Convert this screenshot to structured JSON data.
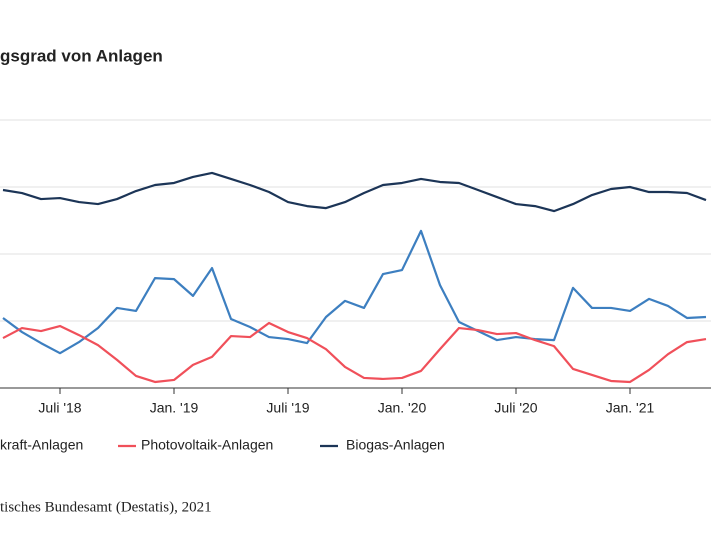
{
  "chart_data": {
    "type": "line",
    "title": "gsgrad von Anlagen",
    "categories": [
      null,
      null,
      null,
      "Juli '18",
      null,
      null,
      null,
      null,
      null,
      "Jan. '19",
      null,
      null,
      null,
      null,
      null,
      "Juli '19",
      null,
      null,
      null,
      null,
      null,
      "Jan. '20",
      null,
      null,
      null,
      null,
      null,
      "Juli '20",
      null,
      null,
      null,
      null,
      null,
      "Jan. '21",
      null,
      null,
      null,
      null
    ],
    "series": [
      {
        "name": "kraft-Anlagen",
        "color": "#3d7fc0",
        "values": [
          20.9,
          16.7,
          13.4,
          10.4,
          13.7,
          17.9,
          23.9,
          23.0,
          32.8,
          32.5,
          27.5,
          35.8,
          20.6,
          18.2,
          15.2,
          14.6,
          13.4,
          21.2,
          26.0,
          23.9,
          34.0,
          35.2,
          46.9,
          30.7,
          19.7,
          17.0,
          14.3,
          15.2,
          14.6,
          14.3,
          29.9,
          23.9,
          23.9,
          23.0,
          26.6,
          24.5,
          20.9,
          21.2
        ]
      },
      {
        "name": "Photovoltaik-Anlagen",
        "color": "#f0505a",
        "values": [
          14.9,
          17.9,
          17.0,
          18.5,
          15.8,
          12.8,
          8.4,
          3.6,
          1.8,
          2.4,
          6.9,
          9.3,
          15.5,
          15.2,
          19.4,
          16.7,
          14.9,
          11.6,
          6.3,
          3.0,
          2.7,
          3.0,
          5.1,
          11.6,
          17.9,
          17.3,
          16.1,
          16.4,
          14.3,
          12.5,
          5.7,
          3.9,
          2.1,
          1.8,
          5.4,
          10.1,
          13.7,
          14.6
        ]
      },
      {
        "name": "Biogas-Anlagen",
        "color": "#1c3557",
        "values": [
          59.1,
          58.2,
          56.4,
          56.7,
          55.5,
          54.9,
          56.4,
          58.8,
          60.6,
          61.2,
          63.0,
          64.2,
          62.4,
          60.6,
          58.5,
          55.5,
          54.3,
          53.7,
          55.5,
          58.2,
          60.6,
          61.2,
          62.4,
          61.5,
          61.2,
          59.1,
          57.0,
          54.9,
          54.3,
          52.8,
          54.9,
          57.6,
          59.4,
          60.0,
          58.5,
          58.5,
          58.2,
          56.1
        ]
      }
    ],
    "ylim": [
      0,
      80
    ],
    "yticks": [
      0,
      20,
      40,
      60,
      80
    ],
    "grid": true,
    "source": "tisches Bundesamt (Destatis), 2021"
  }
}
